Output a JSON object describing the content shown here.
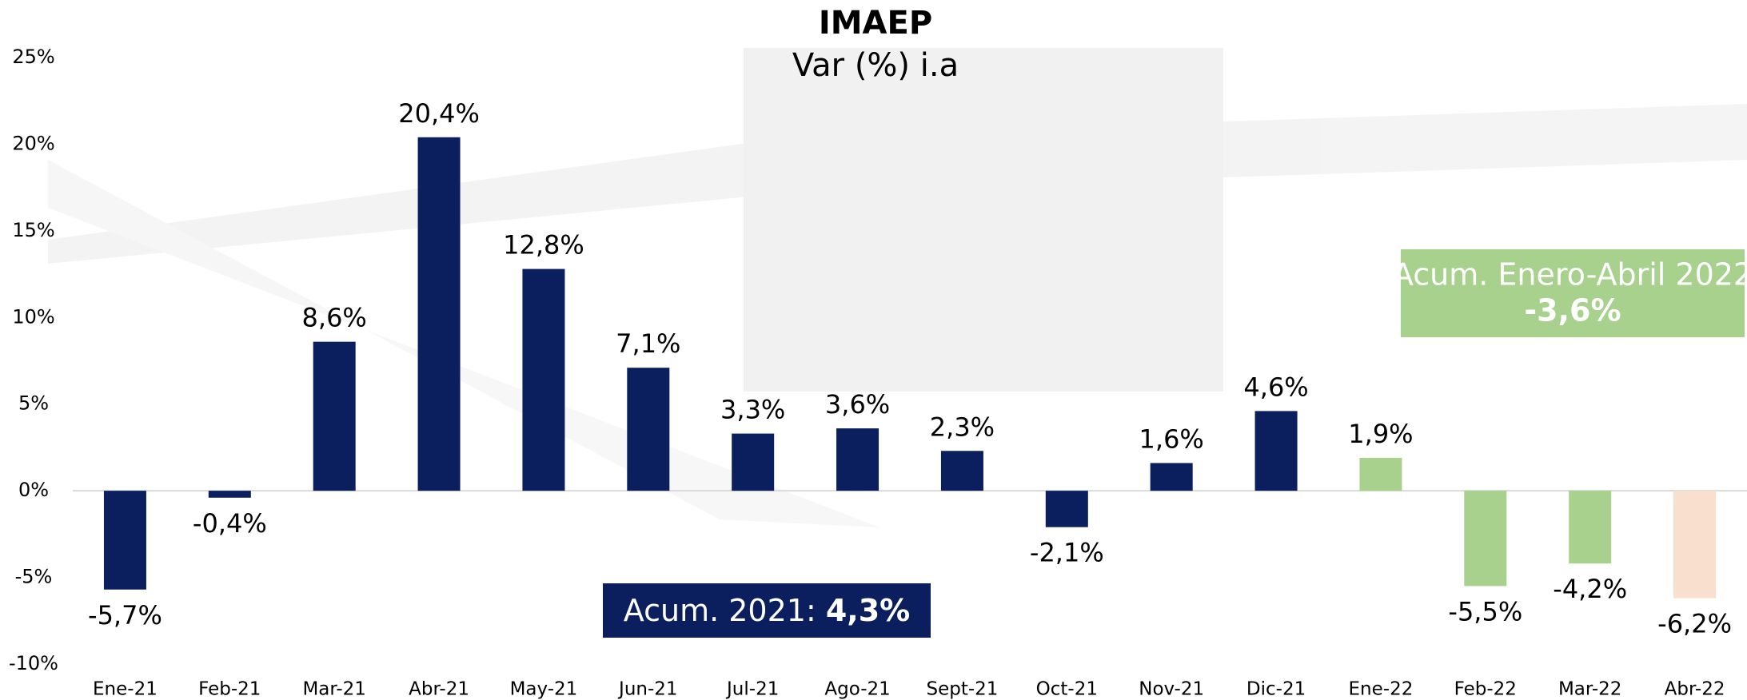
{
  "chart_data": {
    "type": "bar",
    "title": "IMAEP",
    "subtitle": "Var (%) i.a",
    "categories": [
      "Ene-21",
      "Feb-21",
      "Mar-21",
      "Abr-21",
      "May-21",
      "Jun-21",
      "Jul-21",
      "Ago-21",
      "Sept-21",
      "Oct-21",
      "Nov-21",
      "Dic-21",
      "Ene-22",
      "Feb-22",
      "Mar-22",
      "Abr-22"
    ],
    "values": [
      -5.7,
      -0.4,
      8.6,
      20.4,
      12.8,
      7.1,
      3.3,
      3.6,
      2.3,
      -2.1,
      1.6,
      4.6,
      1.9,
      -5.5,
      -4.2,
      -6.2
    ],
    "value_labels": [
      "-5,7%",
      "-0,4%",
      "8,6%",
      "20,4%",
      "12,8%",
      "7,1%",
      "3,3%",
      "3,6%",
      "2,3%",
      "-2,1%",
      "1,6%",
      "4,6%",
      "1,9%",
      "-5,5%",
      "-4,2%",
      "-6,2%"
    ],
    "colors": [
      "#0b1f5e",
      "#0b1f5e",
      "#0b1f5e",
      "#0b1f5e",
      "#0b1f5e",
      "#0b1f5e",
      "#0b1f5e",
      "#0b1f5e",
      "#0b1f5e",
      "#0b1f5e",
      "#0b1f5e",
      "#0b1f5e",
      "#a9d18e",
      "#a9d18e",
      "#a9d18e",
      "#f9dfcd"
    ],
    "ylim": [
      -10,
      25
    ],
    "yticks": [
      {
        "value": -10,
        "label": "-10%"
      },
      {
        "value": -5,
        "label": "-5%"
      },
      {
        "value": 0,
        "label": "0%"
      },
      {
        "value": 5,
        "label": "5%"
      },
      {
        "value": 10,
        "label": "10%"
      },
      {
        "value": 15,
        "label": "15%"
      },
      {
        "value": 20,
        "label": "20%"
      },
      {
        "value": 25,
        "label": "25%"
      }
    ],
    "annotations": [
      {
        "text": "Acum. 2021: ",
        "highlight": "4,3%"
      },
      {
        "text": "Acum. Enero-Abril 2022",
        "highlight": "-3,6%"
      }
    ]
  }
}
